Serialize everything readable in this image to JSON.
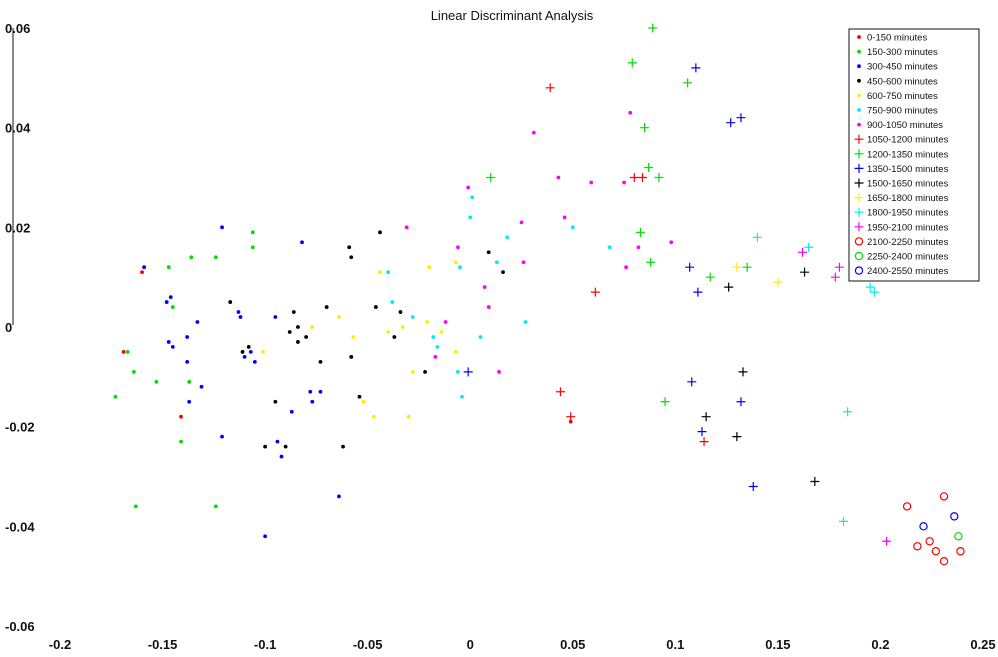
{
  "chart_data": {
    "type": "scatter",
    "title": "Linear Discriminant Analysis",
    "xlabel": "",
    "ylabel": "",
    "xlim": [
      -0.2,
      0.25
    ],
    "ylim": [
      -0.06,
      0.06
    ],
    "xticks": [
      -0.2,
      -0.15,
      -0.1,
      -0.05,
      0,
      0.05,
      0.1,
      0.15,
      0.2,
      0.25
    ],
    "xtick_labels": [
      "-0.2",
      "-0.15",
      "-0.1",
      "-0.05",
      "0",
      "0.05",
      "0.1",
      "0.15",
      "0.2",
      "0.25"
    ],
    "yticks": [
      -0.06,
      -0.04,
      -0.02,
      0,
      0.02,
      0.04,
      0.06
    ],
    "ytick_labels": [
      "-0.06",
      "-0.04",
      "-0.02",
      "0",
      "0.02",
      "0.04",
      "0.06"
    ],
    "legend_position": "top-right",
    "grid": false,
    "series": [
      {
        "name": "0-150 minutes",
        "marker": "dot",
        "color": "#ff0000",
        "points": [
          [
            -0.16,
            0.011
          ],
          [
            -0.169,
            -0.005
          ],
          [
            -0.141,
            -0.018
          ],
          [
            -0.058,
            -0.006
          ],
          [
            0.049,
            -0.019
          ]
        ]
      },
      {
        "name": "150-300 minutes",
        "marker": "dot",
        "color": "#00dd00",
        "points": [
          [
            -0.173,
            -0.014
          ],
          [
            -0.167,
            -0.005
          ],
          [
            -0.164,
            -0.009
          ],
          [
            -0.163,
            -0.036
          ],
          [
            -0.153,
            -0.011
          ],
          [
            -0.147,
            0.012
          ],
          [
            -0.145,
            0.004
          ],
          [
            -0.141,
            -0.023
          ],
          [
            -0.137,
            -0.011
          ],
          [
            -0.136,
            0.014
          ],
          [
            -0.124,
            0.014
          ],
          [
            -0.124,
            -0.036
          ],
          [
            -0.106,
            0.019
          ],
          [
            -0.106,
            0.016
          ]
        ]
      },
      {
        "name": "300-450 minutes",
        "marker": "dot",
        "color": "#0000ff",
        "points": [
          [
            -0.159,
            0.012
          ],
          [
            -0.148,
            0.005
          ],
          [
            -0.146,
            0.006
          ],
          [
            -0.147,
            -0.003
          ],
          [
            -0.145,
            -0.004
          ],
          [
            -0.138,
            -0.007
          ],
          [
            -0.137,
            -0.015
          ],
          [
            -0.138,
            -0.002
          ],
          [
            -0.133,
            0.001
          ],
          [
            -0.131,
            -0.012
          ],
          [
            -0.121,
            0.02
          ],
          [
            -0.121,
            -0.022
          ],
          [
            -0.113,
            0.003
          ],
          [
            -0.112,
            0.002
          ],
          [
            -0.11,
            -0.006
          ],
          [
            -0.107,
            -0.005
          ],
          [
            -0.105,
            -0.007
          ],
          [
            -0.1,
            -0.042
          ],
          [
            -0.095,
            0.002
          ],
          [
            -0.094,
            -0.023
          ],
          [
            -0.092,
            -0.026
          ],
          [
            -0.087,
            -0.017
          ],
          [
            -0.082,
            0.017
          ],
          [
            -0.078,
            -0.013
          ],
          [
            -0.077,
            -0.015
          ],
          [
            -0.073,
            -0.013
          ],
          [
            -0.064,
            -0.034
          ]
        ]
      },
      {
        "name": "450-600 minutes",
        "marker": "dot",
        "color": "#000000",
        "points": [
          [
            -0.117,
            0.005
          ],
          [
            -0.111,
            -0.005
          ],
          [
            -0.108,
            -0.004
          ],
          [
            -0.1,
            -0.024
          ],
          [
            -0.095,
            -0.015
          ],
          [
            -0.09,
            -0.024
          ],
          [
            -0.088,
            -0.001
          ],
          [
            -0.086,
            0.003
          ],
          [
            -0.084,
            0.0
          ],
          [
            -0.084,
            -0.003
          ],
          [
            -0.08,
            -0.002
          ],
          [
            -0.073,
            -0.007
          ],
          [
            -0.07,
            0.004
          ],
          [
            -0.062,
            -0.024
          ],
          [
            -0.059,
            0.016
          ],
          [
            -0.058,
            0.014
          ],
          [
            -0.058,
            -0.006
          ],
          [
            -0.054,
            -0.014
          ],
          [
            -0.046,
            0.004
          ],
          [
            -0.044,
            0.019
          ],
          [
            -0.037,
            -0.002
          ],
          [
            -0.034,
            0.003
          ],
          [
            -0.022,
            -0.009
          ],
          [
            0.009,
            0.015
          ],
          [
            0.016,
            0.011
          ]
        ]
      },
      {
        "name": "600-750 minutes",
        "marker": "dot",
        "color": "#ffee00",
        "points": [
          [
            -0.101,
            -0.005
          ],
          [
            -0.077,
            0.0
          ],
          [
            -0.064,
            0.002
          ],
          [
            -0.057,
            -0.002
          ],
          [
            -0.052,
            -0.015
          ],
          [
            -0.047,
            -0.018
          ],
          [
            -0.044,
            0.011
          ],
          [
            -0.04,
            -0.001
          ],
          [
            -0.033,
            0.0
          ],
          [
            -0.03,
            -0.018
          ],
          [
            -0.028,
            -0.009
          ],
          [
            -0.021,
            0.001
          ],
          [
            -0.02,
            0.012
          ],
          [
            -0.014,
            -0.001
          ],
          [
            -0.007,
            -0.005
          ],
          [
            -0.007,
            0.013
          ]
        ]
      },
      {
        "name": "750-900 minutes",
        "marker": "dot",
        "color": "#00eeee",
        "points": [
          [
            -0.04,
            0.011
          ],
          [
            -0.038,
            0.005
          ],
          [
            -0.028,
            0.002
          ],
          [
            -0.018,
            -0.002
          ],
          [
            -0.016,
            -0.004
          ],
          [
            -0.006,
            -0.009
          ],
          [
            -0.005,
            0.012
          ],
          [
            -0.004,
            -0.014
          ],
          [
            0.0,
            0.022
          ],
          [
            0.001,
            0.026
          ],
          [
            0.005,
            -0.002
          ],
          [
            0.013,
            0.013
          ],
          [
            0.018,
            0.018
          ],
          [
            0.027,
            0.001
          ],
          [
            0.05,
            0.02
          ],
          [
            0.068,
            0.016
          ]
        ]
      },
      {
        "name": "900-1050 minutes",
        "marker": "dot",
        "color": "#ff00ff",
        "points": [
          [
            -0.031,
            0.02
          ],
          [
            -0.017,
            -0.006
          ],
          [
            -0.012,
            0.001
          ],
          [
            -0.006,
            0.016
          ],
          [
            -0.001,
            0.028
          ],
          [
            0.007,
            0.008
          ],
          [
            0.009,
            0.004
          ],
          [
            0.014,
            -0.009
          ],
          [
            0.025,
            0.021
          ],
          [
            0.026,
            0.013
          ],
          [
            0.031,
            0.039
          ],
          [
            0.043,
            0.03
          ],
          [
            0.046,
            0.022
          ],
          [
            0.059,
            0.029
          ],
          [
            0.075,
            0.029
          ],
          [
            0.078,
            0.043
          ],
          [
            0.082,
            0.016
          ],
          [
            0.098,
            0.017
          ],
          [
            0.076,
            0.012
          ]
        ]
      },
      {
        "name": "1050-1200 minutes",
        "marker": "plus",
        "color": "#ff0000",
        "points": [
          [
            0.039,
            0.048
          ],
          [
            0.044,
            -0.013
          ],
          [
            0.049,
            -0.018
          ],
          [
            0.061,
            0.007
          ],
          [
            0.08,
            0.03
          ],
          [
            0.084,
            0.03
          ],
          [
            0.114,
            -0.023
          ]
        ]
      },
      {
        "name": "1200-1350 minutes",
        "marker": "plus",
        "color": "#00dd00",
        "points": [
          [
            0.01,
            0.03
          ],
          [
            0.079,
            0.053
          ],
          [
            0.083,
            0.019
          ],
          [
            0.085,
            0.04
          ],
          [
            0.087,
            0.032
          ],
          [
            0.088,
            0.013
          ],
          [
            0.089,
            0.06
          ],
          [
            0.092,
            0.03
          ],
          [
            0.095,
            -0.015
          ],
          [
            0.106,
            0.049
          ],
          [
            0.117,
            0.01
          ],
          [
            0.135,
            0.012
          ]
        ]
      },
      {
        "name": "1350-1500 minutes",
        "marker": "plus",
        "color": "#0000ff",
        "points": [
          [
            -0.001,
            -0.009
          ],
          [
            0.107,
            0.012
          ],
          [
            0.108,
            -0.011
          ],
          [
            0.11,
            0.052
          ],
          [
            0.111,
            0.007
          ],
          [
            0.113,
            -0.021
          ],
          [
            0.127,
            0.041
          ],
          [
            0.132,
            0.042
          ],
          [
            0.132,
            -0.015
          ],
          [
            0.138,
            -0.032
          ]
        ]
      },
      {
        "name": "1500-1650 minutes",
        "marker": "plus",
        "color": "#000000",
        "points": [
          [
            0.115,
            -0.018
          ],
          [
            0.126,
            0.008
          ],
          [
            0.13,
            -0.022
          ],
          [
            0.133,
            -0.009
          ],
          [
            0.163,
            0.011
          ],
          [
            0.168,
            -0.031
          ]
        ]
      },
      {
        "name": "1650-1800 minutes",
        "marker": "plus",
        "color": "#ffee00",
        "points": [
          [
            0.13,
            0.012
          ],
          [
            0.15,
            0.009
          ]
        ]
      },
      {
        "name": "1800-1950 minutes",
        "marker": "plus",
        "color": "#00eeee",
        "points": [
          [
            0.14,
            0.018
          ],
          [
            0.165,
            0.016
          ],
          [
            0.182,
            -0.039
          ],
          [
            0.184,
            -0.017
          ],
          [
            0.195,
            0.008
          ],
          [
            0.197,
            0.007
          ]
        ]
      },
      {
        "name": "1950-2100 minutes",
        "marker": "plus",
        "color": "#ff00ff",
        "points": [
          [
            0.162,
            0.015
          ],
          [
            0.178,
            0.01
          ],
          [
            0.18,
            0.012
          ],
          [
            0.203,
            -0.043
          ]
        ]
      },
      {
        "name": "2100-2250 minutes",
        "marker": "circle",
        "color": "#ff0000",
        "points": [
          [
            0.213,
            -0.036
          ],
          [
            0.218,
            -0.044
          ],
          [
            0.224,
            -0.043
          ],
          [
            0.227,
            -0.045
          ],
          [
            0.231,
            -0.034
          ],
          [
            0.231,
            -0.047
          ],
          [
            0.239,
            -0.045
          ]
        ]
      },
      {
        "name": "2250-2400 minutes",
        "marker": "circle",
        "color": "#00dd00",
        "points": [
          [
            0.238,
            -0.042
          ]
        ]
      },
      {
        "name": "2400-2550 minutes",
        "marker": "circle",
        "color": "#0000ff",
        "points": [
          [
            0.221,
            -0.04
          ],
          [
            0.236,
            -0.038
          ]
        ]
      }
    ]
  }
}
